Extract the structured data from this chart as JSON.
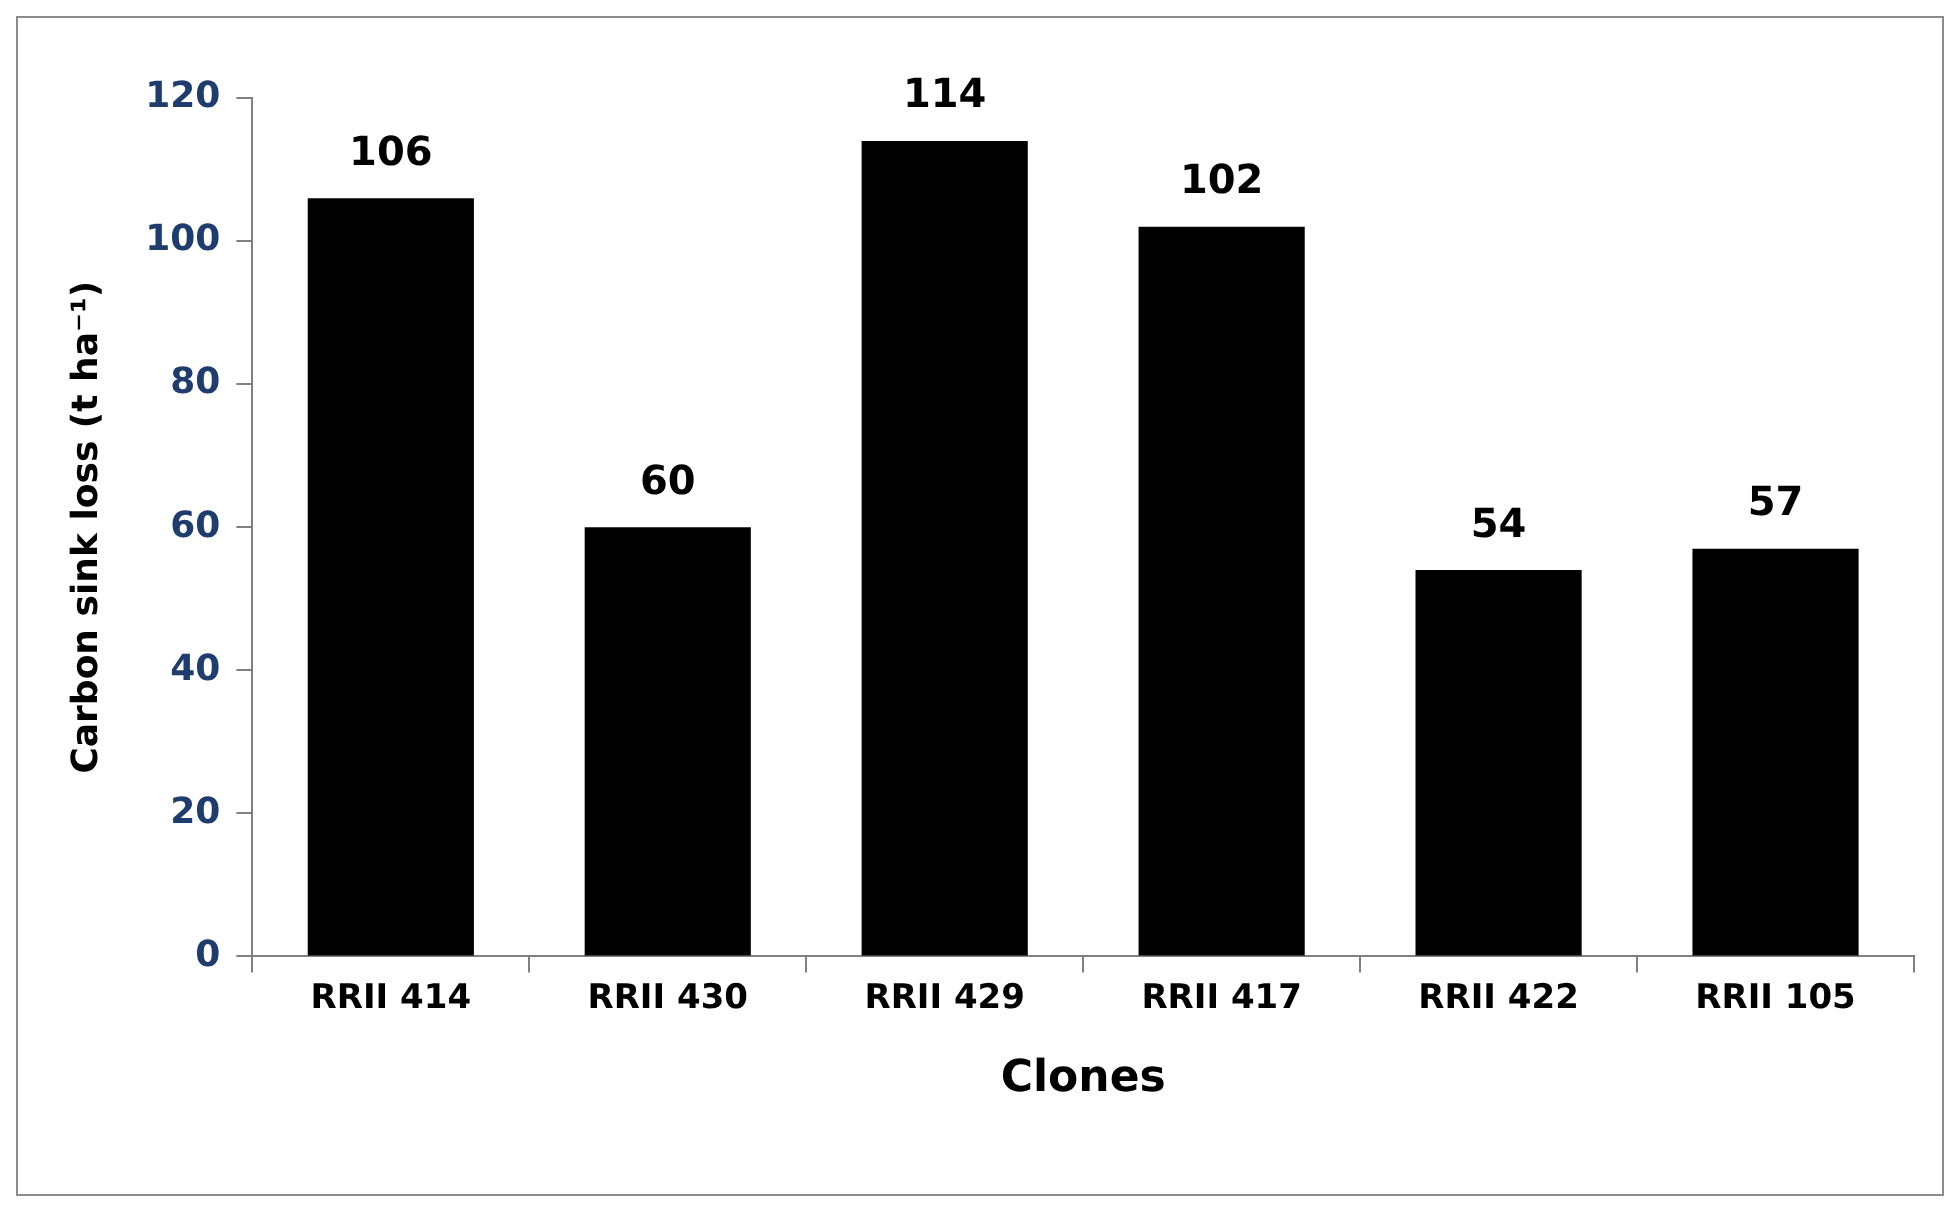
{
  "chart_data": {
    "type": "bar",
    "xlabel": "Clones",
    "ylabel": "Carbon sink loss (t ha⁻¹)",
    "categories": [
      "RRII 414",
      "RRII 430",
      "RRII 429",
      "RRII 417",
      "RRII 422",
      "RRII 105"
    ],
    "values": [
      106,
      60,
      114,
      102,
      54,
      57
    ],
    "color": "#000000",
    "ylim": [
      0,
      120
    ],
    "yticks": [
      0,
      20,
      40,
      60,
      80,
      100,
      120
    ],
    "grid": false,
    "legend": false,
    "data_labels": true
  }
}
